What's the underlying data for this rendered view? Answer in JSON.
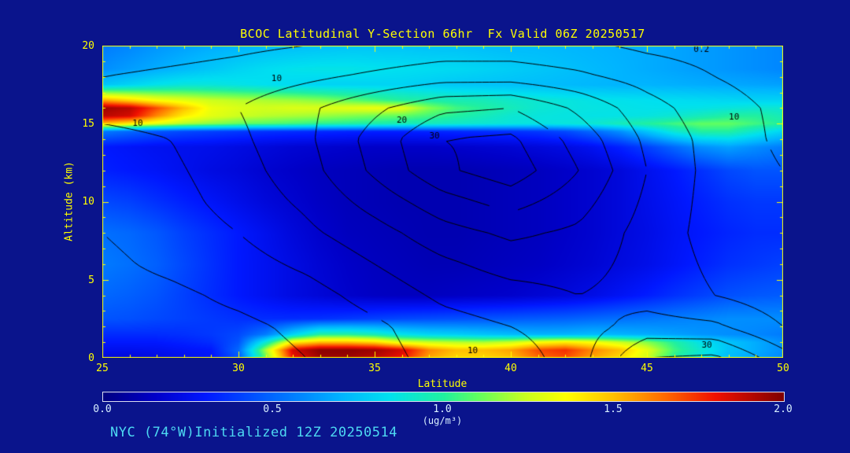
{
  "page": {
    "background": "#0a148c"
  },
  "title": {
    "text": "BCOC Latitudinal Y-Section 66hr  Fx Valid 06Z 20250517",
    "color": "#ffff00"
  },
  "footer": {
    "text": "NYC (74°W)Initialized 12Z 20250514",
    "color": "#4dd9f2"
  },
  "chart_data": {
    "type": "heatmap",
    "title": "BCOC Latitudinal Y-Section 66hr  Fx Valid 06Z 20250517",
    "xlabel": "Latitude",
    "ylabel": "Altitude (km)",
    "x_range": [
      25,
      50
    ],
    "y_range": [
      0,
      20
    ],
    "axis_color": "#ffff00",
    "axes": {
      "x": {
        "label": "Latitude",
        "ticks": [
          "25",
          "30",
          "35",
          "40",
          "45",
          "50"
        ]
      },
      "y": {
        "label": "Altitude (km)",
        "ticks": [
          "0",
          "5",
          "10",
          "15",
          "20"
        ]
      }
    },
    "colorbar": {
      "min": 0,
      "max": 2,
      "ticks": [
        "0.0",
        "0.5",
        "1.0",
        "1.5",
        "2.0"
      ],
      "unit": "(ug/m³)",
      "label_color": "#d8f0ff"
    },
    "colormap": {
      "stops": [
        {
          "t": 0.0,
          "color": "#000082"
        },
        {
          "t": 0.075,
          "color": "#0000c8"
        },
        {
          "t": 0.15,
          "color": "#0018ff"
        },
        {
          "t": 0.25,
          "color": "#0068ff"
        },
        {
          "t": 0.35,
          "color": "#00b4ff"
        },
        {
          "t": 0.42,
          "color": "#00e0f0"
        },
        {
          "t": 0.5,
          "color": "#20f0a0"
        },
        {
          "t": 0.55,
          "color": "#60ff60"
        },
        {
          "t": 0.62,
          "color": "#c8ff20"
        },
        {
          "t": 0.68,
          "color": "#ffff00"
        },
        {
          "t": 0.75,
          "color": "#ffc000"
        },
        {
          "t": 0.82,
          "color": "#ff7000"
        },
        {
          "t": 0.9,
          "color": "#f01000"
        },
        {
          "t": 1.0,
          "color": "#800000"
        }
      ]
    },
    "fill": {
      "units": "ug/m3",
      "lats": [
        25,
        26,
        27,
        28,
        29,
        30,
        31,
        32,
        33,
        34,
        35,
        36,
        37,
        38,
        39,
        40,
        41,
        42,
        43,
        44,
        45,
        46,
        47,
        48,
        49,
        50
      ],
      "alts": [
        0,
        0.5,
        1,
        1.5,
        2.5,
        4,
        6,
        8,
        10,
        12,
        13.5,
        14.5,
        15,
        15.5,
        16,
        16.5,
        17.5,
        18.5,
        20
      ],
      "values": [
        [
          0.2,
          0.2,
          0.22,
          0.25,
          0.28,
          0.45,
          1.1,
          1.8,
          1.95,
          1.95,
          1.9,
          1.8,
          1.55,
          1.45,
          1.45,
          1.5,
          1.65,
          1.7,
          1.55,
          1.45,
          1.25,
          1.0,
          0.85,
          0.72,
          0.65,
          0.58
        ],
        [
          0.25,
          0.25,
          0.26,
          0.28,
          0.3,
          0.5,
          1.2,
          1.85,
          1.98,
          1.98,
          1.95,
          1.85,
          1.6,
          1.5,
          1.5,
          1.55,
          1.7,
          1.75,
          1.6,
          1.5,
          1.3,
          1.05,
          0.9,
          0.75,
          0.68,
          0.6
        ],
        [
          0.3,
          0.3,
          0.3,
          0.32,
          0.35,
          0.45,
          0.9,
          1.4,
          1.5,
          1.5,
          1.45,
          1.3,
          1.25,
          1.22,
          1.2,
          1.25,
          1.35,
          1.4,
          1.35,
          1.25,
          1.15,
          1.0,
          0.85,
          0.75,
          0.68,
          0.6
        ],
        [
          0.35,
          0.35,
          0.35,
          0.36,
          0.38,
          0.42,
          0.55,
          0.8,
          1.0,
          1.0,
          0.95,
          0.85,
          0.8,
          0.78,
          0.75,
          0.72,
          0.7,
          0.7,
          0.72,
          0.7,
          0.68,
          0.65,
          0.62,
          0.6,
          0.58,
          0.55
        ],
        [
          0.45,
          0.44,
          0.42,
          0.4,
          0.38,
          0.36,
          0.35,
          0.35,
          0.36,
          0.38,
          0.4,
          0.42,
          0.43,
          0.44,
          0.45,
          0.46,
          0.47,
          0.48,
          0.5,
          0.52,
          0.54,
          0.56,
          0.58,
          0.6,
          0.6,
          0.6
        ],
        [
          0.5,
          0.48,
          0.45,
          0.4,
          0.35,
          0.3,
          0.26,
          0.22,
          0.19,
          0.16,
          0.14,
          0.13,
          0.13,
          0.14,
          0.15,
          0.16,
          0.18,
          0.2,
          0.23,
          0.27,
          0.31,
          0.36,
          0.4,
          0.44,
          0.46,
          0.47
        ],
        [
          0.55,
          0.52,
          0.48,
          0.42,
          0.36,
          0.3,
          0.26,
          0.22,
          0.18,
          0.15,
          0.13,
          0.12,
          0.11,
          0.11,
          0.12,
          0.13,
          0.14,
          0.16,
          0.18,
          0.21,
          0.24,
          0.28,
          0.32,
          0.36,
          0.38,
          0.4
        ],
        [
          0.52,
          0.5,
          0.46,
          0.4,
          0.35,
          0.3,
          0.25,
          0.2,
          0.16,
          0.13,
          0.12,
          0.11,
          0.1,
          0.1,
          0.11,
          0.12,
          0.13,
          0.15,
          0.17,
          0.2,
          0.23,
          0.27,
          0.3,
          0.33,
          0.35,
          0.35
        ],
        [
          0.42,
          0.4,
          0.36,
          0.32,
          0.28,
          0.24,
          0.2,
          0.17,
          0.14,
          0.12,
          0.11,
          0.1,
          0.1,
          0.1,
          0.11,
          0.12,
          0.13,
          0.15,
          0.17,
          0.2,
          0.24,
          0.28,
          0.32,
          0.36,
          0.38,
          0.38
        ],
        [
          0.32,
          0.3,
          0.28,
          0.25,
          0.22,
          0.2,
          0.17,
          0.15,
          0.13,
          0.12,
          0.11,
          0.1,
          0.1,
          0.1,
          0.11,
          0.12,
          0.13,
          0.15,
          0.17,
          0.2,
          0.25,
          0.3,
          0.36,
          0.42,
          0.45,
          0.45
        ],
        [
          0.3,
          0.28,
          0.26,
          0.25,
          0.24,
          0.22,
          0.2,
          0.18,
          0.17,
          0.16,
          0.15,
          0.15,
          0.15,
          0.16,
          0.17,
          0.18,
          0.2,
          0.22,
          0.26,
          0.32,
          0.4,
          0.5,
          0.6,
          0.65,
          0.6,
          0.55
        ],
        [
          0.55,
          0.5,
          0.45,
          0.42,
          0.4,
          0.38,
          0.36,
          0.35,
          0.34,
          0.33,
          0.32,
          0.32,
          0.33,
          0.34,
          0.35,
          0.36,
          0.38,
          0.42,
          0.5,
          0.6,
          0.75,
          0.9,
          1.0,
          1.0,
          0.9,
          0.8
        ],
        [
          1.5,
          1.4,
          1.3,
          1.2,
          1.15,
          1.1,
          1.08,
          1.05,
          1.02,
          1.0,
          0.98,
          0.96,
          0.94,
          0.92,
          0.9,
          0.88,
          0.87,
          0.88,
          0.9,
          0.95,
          1.0,
          1.05,
          1.1,
          1.1,
          1.05,
          1.0
        ],
        [
          1.9,
          1.85,
          1.6,
          1.4,
          1.3,
          1.25,
          1.22,
          1.2,
          1.18,
          1.15,
          1.12,
          1.1,
          1.05,
          1.0,
          0.95,
          0.9,
          0.88,
          0.87,
          0.86,
          0.86,
          0.87,
          0.9,
          0.95,
          1.0,
          1.0,
          0.95
        ],
        [
          1.95,
          1.9,
          1.7,
          1.5,
          1.32,
          1.28,
          1.26,
          1.28,
          1.28,
          1.3,
          1.32,
          1.3,
          1.15,
          1.05,
          1.0,
          0.95,
          0.9,
          0.88,
          0.87,
          0.86,
          0.85,
          0.85,
          0.86,
          0.88,
          0.9,
          0.9
        ],
        [
          1.55,
          1.45,
          1.35,
          1.3,
          1.25,
          1.22,
          1.2,
          1.18,
          1.15,
          1.1,
          1.05,
          1.0,
          0.98,
          0.96,
          0.95,
          0.92,
          0.9,
          0.88,
          0.86,
          0.85,
          0.84,
          0.83,
          0.82,
          0.81,
          0.8,
          0.8
        ],
        [
          0.75,
          0.8,
          0.85,
          0.88,
          0.88,
          0.86,
          0.84,
          0.82,
          0.8,
          0.8,
          0.8,
          0.8,
          0.78,
          0.76,
          0.75,
          0.74,
          0.73,
          0.72,
          0.71,
          0.7,
          0.7,
          0.69,
          0.68,
          0.67,
          0.66,
          0.65
        ],
        [
          0.6,
          0.64,
          0.68,
          0.72,
          0.76,
          0.8,
          0.83,
          0.85,
          0.86,
          0.86,
          0.85,
          0.84,
          0.83,
          0.82,
          0.8,
          0.78,
          0.76,
          0.74,
          0.72,
          0.7,
          0.68,
          0.66,
          0.64,
          0.62,
          0.6,
          0.58
        ],
        [
          0.55,
          0.58,
          0.62,
          0.65,
          0.68,
          0.7,
          0.72,
          0.73,
          0.74,
          0.75,
          0.75,
          0.75,
          0.74,
          0.74,
          0.73,
          0.72,
          0.72,
          0.71,
          0.7,
          0.69,
          0.68,
          0.66,
          0.64,
          0.62,
          0.6,
          0.58
        ]
      ]
    },
    "contour_overlay": {
      "levels": [
        5,
        10,
        15,
        20,
        25,
        30,
        35
      ],
      "lats": [
        25,
        27.5,
        30,
        32.5,
        35,
        37.5,
        40,
        42.5,
        45,
        47.5,
        50
      ],
      "alts": [
        0,
        2,
        4,
        6,
        8,
        10,
        12,
        14,
        16,
        18,
        20
      ],
      "values": [
        [
          2,
          2,
          3,
          5,
          8,
          12,
          12,
          18,
          30,
          31,
          22
        ],
        [
          2,
          3,
          4,
          6,
          9,
          13,
          15,
          18,
          22,
          21,
          15
        ],
        [
          3,
          4,
          6,
          8,
          12,
          16,
          18,
          20,
          18,
          15,
          12
        ],
        [
          4,
          6,
          8,
          11,
          15,
          19,
          22,
          22,
          18,
          14,
          11
        ],
        [
          5,
          7,
          10,
          14,
          18,
          23,
          26,
          24,
          18,
          13,
          10
        ],
        [
          6,
          8,
          12,
          16,
          22,
          28,
          32,
          27,
          19,
          13,
          10
        ],
        [
          7,
          9,
          13,
          18,
          26,
          34,
          38,
          30,
          20,
          13,
          10
        ],
        [
          8,
          10,
          14,
          19,
          27,
          35,
          36,
          28,
          19,
          13,
          9
        ],
        [
          12,
          13,
          15,
          19,
          24,
          29,
          30,
          24,
          17,
          12,
          9
        ],
        [
          10,
          11,
          12,
          14,
          16,
          18,
          18,
          16,
          13,
          10,
          8
        ],
        [
          7,
          8,
          9,
          10,
          11,
          12,
          12,
          11,
          9,
          8,
          6
        ]
      ]
    },
    "contour_labels": [
      {
        "text": "10",
        "lat": 31.4,
        "alt": 17.9
      },
      {
        "text": "10",
        "lat": 26.3,
        "alt": 15.0
      },
      {
        "text": "20",
        "lat": 36.0,
        "alt": 15.2
      },
      {
        "text": "30",
        "lat": 37.2,
        "alt": 14.2
      },
      {
        "text": "10",
        "lat": 38.6,
        "alt": 0.45
      },
      {
        "text": "30",
        "lat": 47.2,
        "alt": 0.8
      },
      {
        "text": "10",
        "lat": 48.2,
        "alt": 15.4
      },
      {
        "text": "0.2",
        "lat": 47.0,
        "alt": 19.75
      }
    ]
  }
}
